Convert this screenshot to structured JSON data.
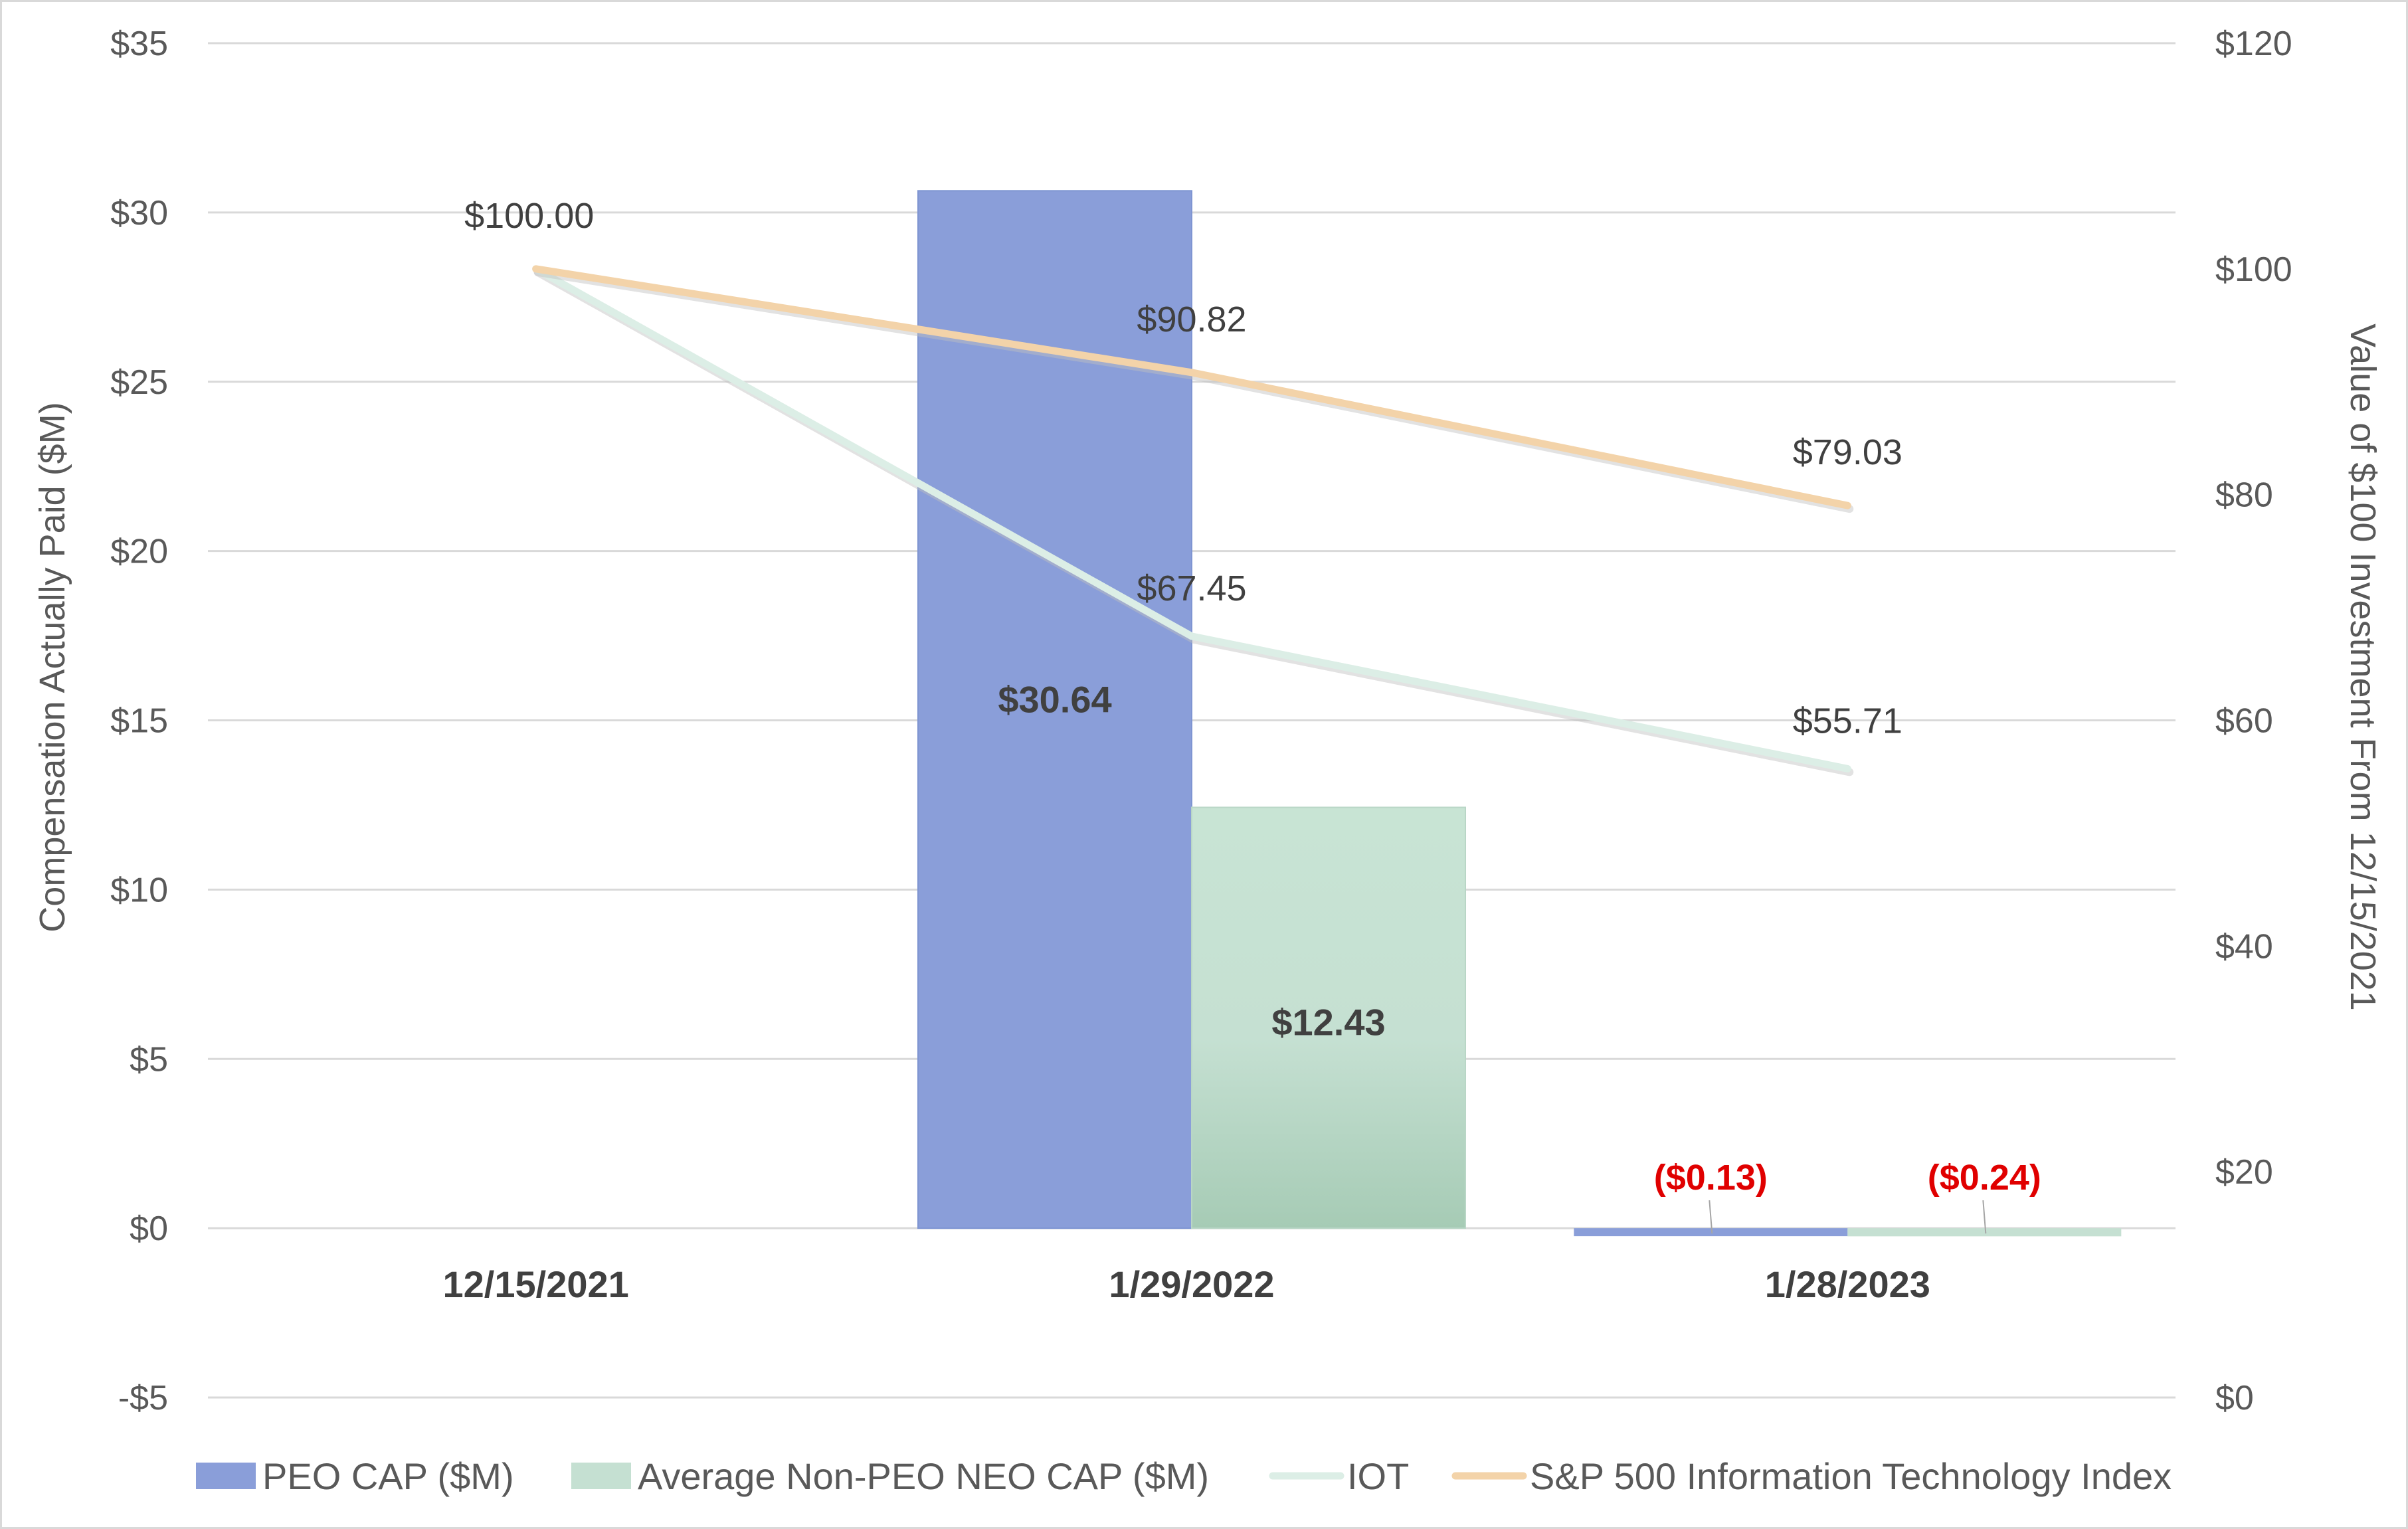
{
  "chart_data": {
    "type": "bar",
    "categories": [
      "12/15/2021",
      "1/29/2022",
      "1/28/2023"
    ],
    "y_left": {
      "label": "Compensation Actually Paid ($M)",
      "range": [
        -5,
        35
      ],
      "ticks": [
        35,
        30,
        25,
        20,
        15,
        10,
        5,
        0,
        -5
      ],
      "tick_labels": [
        "$35",
        "$30",
        "$25",
        "$20",
        "$15",
        "$10",
        "$5",
        "$0",
        "-$5"
      ]
    },
    "y_right": {
      "label": "Value of $100 Investment From 12/15/2021",
      "range": [
        0,
        120
      ],
      "ticks": [
        120,
        100,
        80,
        60,
        40,
        20,
        0
      ],
      "tick_labels": [
        "$120",
        "$100",
        "$80",
        "$60",
        "$40",
        "$20",
        "$0"
      ]
    },
    "bar_series": [
      {
        "name": "PEO CAP ($M)",
        "color": "#8a9ed9",
        "values": [
          null,
          30.64,
          -0.13
        ],
        "labels": [
          "",
          "$30.64",
          "($0.13)"
        ]
      },
      {
        "name": "Average Non-PEO NEO CAP ($M)",
        "color": "#c5e0d2",
        "values": [
          null,
          12.43,
          -0.24
        ],
        "labels": [
          "",
          "$12.43",
          "($0.24)"
        ]
      }
    ],
    "line_series": [
      {
        "name": "IOT",
        "color": "#dceee6",
        "values": [
          100.0,
          67.45,
          55.71
        ],
        "labels": [
          "",
          "$67.45",
          "$55.71"
        ]
      },
      {
        "name": "S&P 500 Information Technology Index",
        "color": "#f3d3a9",
        "values": [
          100.0,
          90.82,
          79.03
        ],
        "labels": [
          "$100.00",
          "$90.82",
          "$79.03"
        ]
      }
    ],
    "negative_label_color": "#e00000",
    "grid": true,
    "legend_position": "bottom"
  }
}
